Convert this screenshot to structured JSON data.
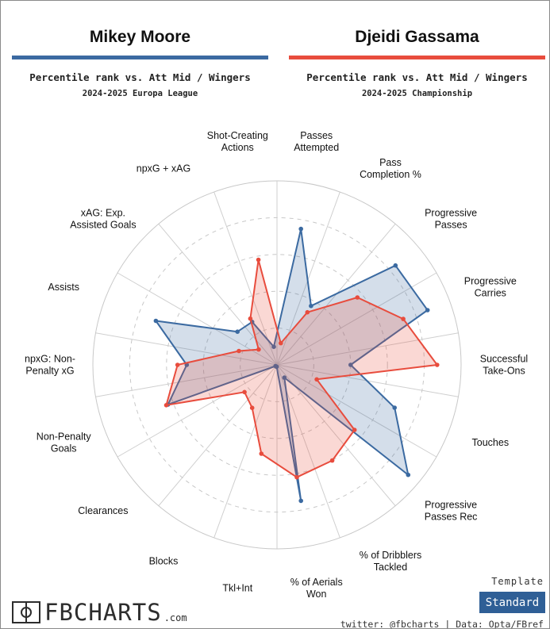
{
  "players": [
    {
      "name": "Mikey Moore",
      "color": "#3b6aa1",
      "subtitle": "Percentile rank vs. Att Mid / Wingers",
      "competition": "2024-2025 Europa League"
    },
    {
      "name": "Djeidi Gassama",
      "color": "#e84c3d",
      "subtitle": "Percentile rank vs. Att Mid / Wingers",
      "competition": "2024-2025 Championship"
    }
  ],
  "chart_data": {
    "type": "radar",
    "range": [
      0,
      100
    ],
    "grid": true,
    "categories": [
      "Passes Attempted",
      "Pass Completion %",
      "Progressive Passes",
      "Progressive Carries",
      "Successful Take-Ons",
      "Touches",
      "Progressive Passes Rec",
      "% of Dribblers Tackled",
      "% of Aerials Won",
      "Tkl+Int",
      "Blocks",
      "Clearances",
      "Non-Penalty Goals",
      "npxG: Non-Penalty xG",
      "Assists",
      "xAG: Exp. Assisted Goals",
      "npxG + xAG",
      "Shot-Creating Actions"
    ],
    "label_lines": [
      [
        "Passes",
        "Attempted"
      ],
      [
        "Pass",
        "Completion %"
      ],
      [
        "Progressive",
        "Passes"
      ],
      [
        "Progressive",
        "Carries"
      ],
      [
        "Successful",
        "Take-Ons"
      ],
      [
        "Touches"
      ],
      [
        "Progressive",
        "Passes Rec"
      ],
      [
        "% of Dribblers",
        "Tackled"
      ],
      [
        "% of Aerials",
        "Won"
      ],
      [
        "Tkl+Int"
      ],
      [
        "Blocks"
      ],
      [
        "Clearances"
      ],
      [
        "Non-Penalty",
        "Goals"
      ],
      [
        "npxG: Non-",
        "Penalty xG"
      ],
      [
        "Assists"
      ],
      [
        "xAG: Exp.",
        "Assisted Goals"
      ],
      [
        "npxG + xAG"
      ],
      [
        "Shot-Creating",
        "Actions"
      ]
    ],
    "series": [
      {
        "name": "Mikey Moore",
        "color": "#3b6aa1",
        "values": [
          75,
          37,
          84,
          87,
          40,
          68,
          93,
          8,
          75,
          1,
          1,
          1,
          63,
          49,
          70,
          28,
          27,
          10
        ]
      },
      {
        "name": "Djeidi Gassama",
        "color": "#e84c3d",
        "values": [
          12,
          33,
          57,
          73,
          87,
          23,
          55,
          60,
          62,
          49,
          27,
          23,
          64,
          54,
          22,
          13,
          29,
          58
        ]
      }
    ]
  },
  "footer": {
    "template_label": "Template",
    "template_value": "Standard",
    "template_color": "#2f5f96",
    "credit": "twitter: @fbcharts | Data: Opta/FBref",
    "logo_text": "FBCHARTS",
    "logo_suffix": ".com"
  }
}
